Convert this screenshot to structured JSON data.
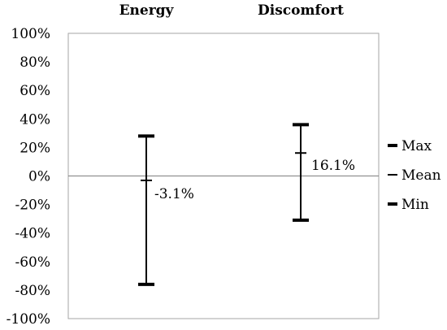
{
  "chart_data": {
    "type": "error-bar",
    "categories": [
      "Energy",
      "Discomfort"
    ],
    "series": [
      {
        "name": "Max",
        "values": [
          28,
          36
        ]
      },
      {
        "name": "Mean",
        "values": [
          -3.1,
          16.1
        ]
      },
      {
        "name": "Min",
        "values": [
          -76,
          -31
        ]
      }
    ],
    "data_labels": [
      "-3.1%",
      "16.1%"
    ],
    "ylim": [
      -100,
      100
    ],
    "yticks": [
      -100,
      -80,
      -60,
      -40,
      -20,
      0,
      20,
      40,
      60,
      80,
      100
    ],
    "ytick_labels": [
      "-100%",
      "-80%",
      "-60%",
      "-40%",
      "-20%",
      "0%",
      "20%",
      "40%",
      "60%",
      "80%",
      "100%"
    ],
    "legend_position": "right",
    "legend": [
      "Max",
      "Mean",
      "Min"
    ],
    "grid": false,
    "zero_line": true
  }
}
